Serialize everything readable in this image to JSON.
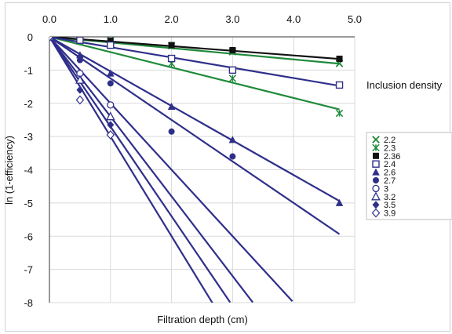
{
  "chart_data": {
    "type": "scatter",
    "title": "",
    "xlabel": "Filtration depth (cm)",
    "ylabel": "ln (1-efficiency)",
    "xlim": [
      0,
      5
    ],
    "ylim": [
      -8,
      0
    ],
    "x_ticks": [
      "0.0",
      "1.0",
      "2.0",
      "3.0",
      "4.0",
      "5.0"
    ],
    "y_ticks": [
      "0",
      "-1",
      "-2",
      "-3",
      "-4",
      "-5",
      "-6",
      "-7",
      "-8"
    ],
    "grid": true,
    "legend": {
      "title": "Inclusion density",
      "placement": "right"
    },
    "series": [
      {
        "name": "2.2",
        "marker": "x",
        "color": "#1f8a3b",
        "points": [
          [
            0,
            0
          ],
          [
            0.5,
            -0.03
          ],
          [
            1.0,
            -0.1
          ],
          [
            2.0,
            -0.27
          ],
          [
            3.0,
            -0.45
          ],
          [
            4.75,
            -0.8
          ]
        ],
        "fit": {
          "slope": -0.17,
          "x_end": 4.75
        }
      },
      {
        "name": "2.3",
        "marker": "asterisk",
        "color": "#1f8a3b",
        "points": [
          [
            0,
            0
          ],
          [
            0.5,
            -0.12
          ],
          [
            1.0,
            -0.25
          ],
          [
            2.0,
            -0.8
          ],
          [
            3.0,
            -1.25
          ],
          [
            4.75,
            -2.3
          ]
        ],
        "fit": {
          "slope": -0.46,
          "x_end": 4.75
        }
      },
      {
        "name": "2.36",
        "marker": "square-filled",
        "color": "#111111",
        "points": [
          [
            0,
            0
          ],
          [
            0.5,
            -0.04
          ],
          [
            1.0,
            -0.12
          ],
          [
            2.0,
            -0.25
          ],
          [
            3.0,
            -0.4
          ],
          [
            4.75,
            -0.66
          ]
        ],
        "fit": {
          "slope": -0.14,
          "x_end": 4.75
        }
      },
      {
        "name": "2.4",
        "marker": "square-open",
        "color": "#2f2f8a",
        "points": [
          [
            0,
            0
          ],
          [
            0.5,
            -0.1
          ],
          [
            1.0,
            -0.25
          ],
          [
            2.0,
            -0.65
          ],
          [
            3.0,
            -1.0
          ],
          [
            4.75,
            -1.45
          ]
        ],
        "fit": {
          "slope": -0.31,
          "x_end": 4.75
        }
      },
      {
        "name": "2.6",
        "marker": "triangle-filled",
        "color": "#2f2f8a",
        "points": [
          [
            0,
            0
          ],
          [
            0.5,
            -0.55
          ],
          [
            1.0,
            -1.1
          ],
          [
            2.0,
            -2.1
          ],
          [
            3.0,
            -3.1
          ],
          [
            4.75,
            -5.0
          ]
        ],
        "fit": {
          "slope": -1.04,
          "x_end": 4.75
        }
      },
      {
        "name": "2.7",
        "marker": "circle-filled",
        "color": "#2f2f8a",
        "points": [
          [
            0,
            0
          ],
          [
            0.5,
            -0.7
          ],
          [
            1.0,
            -1.4
          ],
          [
            2.0,
            -2.85
          ],
          [
            3.0,
            -3.6
          ]
        ],
        "fit": {
          "slope": -1.25,
          "x_end": 4.75
        }
      },
      {
        "name": "3",
        "marker": "circle-open",
        "color": "#2f2f8a",
        "points": [
          [
            0,
            0
          ],
          [
            0.5,
            -1.1
          ],
          [
            1.0,
            -2.05
          ]
        ],
        "fit": {
          "slope": -2.0,
          "x_end": 3.98
        }
      },
      {
        "name": "3.2",
        "marker": "triangle-open",
        "color": "#2f2f8a",
        "points": [
          [
            0,
            0
          ],
          [
            0.5,
            -1.3
          ],
          [
            1.0,
            -2.4
          ]
        ],
        "fit": {
          "slope": -2.4,
          "x_end": 3.33
        }
      },
      {
        "name": "3.5",
        "marker": "diamond-filled",
        "color": "#2f2f8a",
        "points": [
          [
            0,
            0
          ],
          [
            0.5,
            -1.6
          ],
          [
            1.0,
            -2.65
          ]
        ],
        "fit": {
          "slope": -2.7,
          "x_end": 2.96
        }
      },
      {
        "name": "3.9",
        "marker": "diamond-open",
        "color": "#2f2f8a",
        "points": [
          [
            0,
            0
          ],
          [
            0.5,
            -1.9
          ],
          [
            1.0,
            -2.95
          ]
        ],
        "fit": {
          "slope": -3.0,
          "x_end": 2.67
        }
      }
    ]
  }
}
